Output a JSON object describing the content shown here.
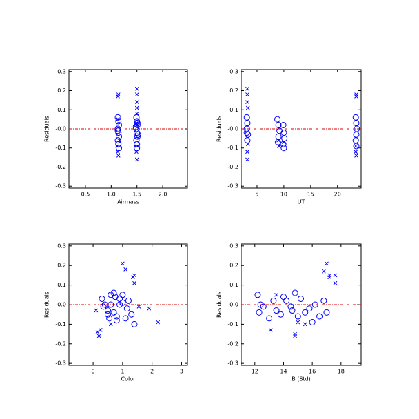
{
  "chart_data": [
    {
      "type": "scatter",
      "xlabel": "Airmass",
      "ylabel": "Residuals",
      "xlim": [
        0.18,
        2.48
      ],
      "xticks": [
        0.5,
        {
          "value": 1,
          "label": "1.0"
        },
        1.5,
        {
          "value": 2,
          "label": "2.0"
        }
      ],
      "ylim": [
        -0.31,
        0.31
      ],
      "yticks": [
        -0.3,
        -0.2,
        -0.1,
        {
          "value": 0,
          "label": "-0.0"
        },
        0.1,
        0.2,
        0.3
      ],
      "hline": 0,
      "hline_color": "#dd0000",
      "series": [
        {
          "marker": "circle",
          "color": "#0000ff",
          "x": [
            1.13,
            1.14,
            1.15,
            1.13,
            1.14,
            1.15,
            1.13,
            1.14,
            1.15,
            1.13,
            1.49,
            1.5,
            1.51,
            1.49,
            1.5,
            1.51,
            1.49,
            1.5,
            1.51,
            1.5,
            1.52,
            1.48
          ],
          "values": [
            0.06,
            0.04,
            0.02,
            0.0,
            -0.02,
            -0.04,
            -0.06,
            -0.08,
            -0.1,
            -0.01,
            0.06,
            0.04,
            0.02,
            0.0,
            -0.02,
            -0.04,
            -0.06,
            -0.08,
            0.03,
            -0.1,
            -0.03,
            0.01
          ]
        },
        {
          "marker": "cross",
          "color": "#0000ff",
          "x": [
            1.13,
            1.14,
            1.13,
            1.14,
            1.12,
            1.13,
            1.5,
            1.5,
            1.5,
            1.5,
            1.5,
            1.49,
            1.51,
            1.5,
            1.49,
            1.16
          ],
          "values": [
            0.17,
            0.18,
            -0.12,
            -0.14,
            -0.09,
            0.05,
            0.21,
            0.18,
            0.14,
            0.11,
            0.08,
            -0.12,
            -0.09,
            -0.16,
            0.03,
            -0.06
          ]
        }
      ]
    },
    {
      "type": "scatter",
      "xlabel": "UT",
      "ylabel": "Residuals",
      "xlim": [
        2.05,
        24.4
      ],
      "xticks": [
        5,
        10,
        15,
        20
      ],
      "ylim": [
        -0.31,
        0.31
      ],
      "yticks": [
        -0.3,
        -0.2,
        -0.1,
        {
          "value": 0,
          "label": "-0.0"
        },
        0.1,
        0.2,
        0.3
      ],
      "hline": 0,
      "hline_color": "#dd0000",
      "series": [
        {
          "marker": "circle",
          "color": "#0000ff",
          "x": [
            3.1,
            3.2,
            3.1,
            3.3,
            3.2,
            3.1,
            8.8,
            9.0,
            9.2,
            9.0,
            8.9,
            9.9,
            10.0,
            10.1,
            9.9,
            10.0,
            23.4,
            23.5,
            23.6,
            23.5,
            23.4,
            23.5
          ],
          "values": [
            0.06,
            0.03,
            0.0,
            -0.03,
            -0.06,
            -0.02,
            0.05,
            0.02,
            -0.01,
            -0.04,
            -0.07,
            0.02,
            -0.02,
            -0.05,
            -0.08,
            -0.1,
            0.06,
            0.03,
            0.0,
            -0.03,
            -0.06,
            -0.09
          ]
        },
        {
          "marker": "cross",
          "color": "#0000ff",
          "x": [
            3.2,
            3.2,
            3.2,
            3.3,
            3.2,
            3.2,
            3.3,
            9.0,
            9.1,
            10.0,
            23.5,
            23.5,
            23.4,
            23.5,
            23.4
          ],
          "values": [
            0.21,
            0.18,
            0.14,
            0.11,
            -0.12,
            -0.16,
            -0.08,
            -0.06,
            -0.09,
            -0.07,
            0.17,
            0.18,
            -0.12,
            -0.14,
            -0.09
          ]
        }
      ]
    },
    {
      "type": "scatter",
      "xlabel": "Color",
      "ylabel": "Residuals",
      "xlim": [
        -0.82,
        3.2
      ],
      "xticks": [
        0,
        1,
        2,
        3
      ],
      "ylim": [
        -0.31,
        0.31
      ],
      "yticks": [
        -0.3,
        -0.2,
        -0.1,
        {
          "value": 0,
          "label": "-0.0"
        },
        0.1,
        0.2,
        0.3
      ],
      "hline": 0,
      "hline_color": "#dd0000",
      "series": [
        {
          "marker": "circle",
          "color": "#0000ff",
          "x": [
            0.3,
            0.4,
            0.5,
            0.6,
            0.7,
            0.8,
            0.9,
            1.0,
            1.1,
            1.2,
            1.4,
            0.5,
            0.6,
            0.7,
            0.8,
            1.0,
            0.35,
            1.3,
            0.9,
            0.55,
            1.15,
            0.75
          ],
          "values": [
            0.03,
            0.0,
            -0.03,
            0.05,
            0.06,
            -0.06,
            0.0,
            0.01,
            -0.07,
            0.02,
            -0.1,
            -0.05,
            0.0,
            -0.04,
            -0.08,
            0.05,
            -0.01,
            -0.05,
            0.03,
            -0.07,
            -0.02,
            0.04
          ]
        },
        {
          "marker": "cross",
          "color": "#0000ff",
          "x": [
            0.2,
            0.15,
            1.0,
            1.1,
            1.4,
            1.35,
            1.4,
            1.9,
            2.2,
            0.25,
            1.55,
            0.1,
            0.6
          ],
          "values": [
            -0.16,
            -0.14,
            0.21,
            0.18,
            0.15,
            0.14,
            0.11,
            -0.02,
            -0.09,
            -0.13,
            -0.01,
            -0.03,
            -0.1
          ]
        }
      ]
    },
    {
      "type": "scatter",
      "xlabel": "B (Std)",
      "ylabel": "Residuals",
      "xlim": [
        11.05,
        19.4
      ],
      "xticks": [
        12,
        14,
        16,
        18
      ],
      "ylim": [
        -0.31,
        0.31
      ],
      "yticks": [
        -0.3,
        -0.2,
        -0.1,
        {
          "value": 0,
          "label": "-0.0"
        },
        0.1,
        0.2,
        0.3
      ],
      "hline": 0,
      "hline_color": "#dd0000",
      "series": [
        {
          "marker": "circle",
          "color": "#0000ff",
          "x": [
            12.2,
            12.4,
            12.3,
            12.6,
            13.0,
            13.3,
            13.5,
            13.8,
            14.0,
            14.2,
            14.5,
            14.8,
            15.0,
            15.2,
            15.5,
            15.8,
            16.0,
            16.2,
            16.5,
            16.8,
            17.0,
            14.6
          ],
          "values": [
            0.05,
            0.0,
            -0.04,
            -0.01,
            -0.07,
            0.02,
            -0.03,
            -0.05,
            0.04,
            0.02,
            -0.01,
            0.06,
            -0.06,
            0.03,
            -0.04,
            -0.02,
            -0.09,
            0.0,
            -0.06,
            0.02,
            -0.04,
            -0.03
          ]
        },
        {
          "marker": "cross",
          "color": "#0000ff",
          "x": [
            13.1,
            13.5,
            14.8,
            14.8,
            15.5,
            16.8,
            17.0,
            17.2,
            17.2,
            17.6,
            17.6,
            15.0
          ],
          "values": [
            -0.13,
            0.05,
            -0.15,
            -0.16,
            -0.1,
            0.17,
            0.21,
            0.15,
            0.14,
            0.15,
            0.11,
            -0.09
          ]
        }
      ]
    }
  ]
}
